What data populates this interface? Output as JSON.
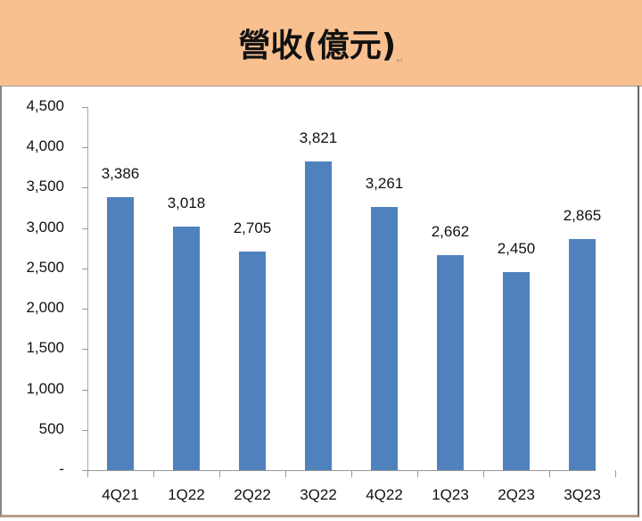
{
  "header": {
    "title": "營收(億元)",
    "return_mark": "↵"
  },
  "chart_data": {
    "type": "bar",
    "title": "營收(億元)",
    "xlabel": "",
    "ylabel": "",
    "categories": [
      "4Q21",
      "1Q22",
      "2Q22",
      "3Q22",
      "4Q22",
      "1Q23",
      "2Q23",
      "3Q23"
    ],
    "values": [
      3386,
      3018,
      2705,
      3821,
      3261,
      2662,
      2450,
      2865
    ],
    "value_labels": [
      "3,386",
      "3,018",
      "2,705",
      "3,821",
      "3,261",
      "2,662",
      "2,450",
      "2,865"
    ],
    "ylim": [
      0,
      4500
    ],
    "yticks": [
      "-",
      "500",
      "1,000",
      "1,500",
      "2,000",
      "2,500",
      "3,000",
      "3,500",
      "4,000",
      "4,500"
    ],
    "grid": false,
    "legend": "none",
    "bar_color": "#4f81bd"
  },
  "colors": {
    "header_bg": "#f9c08f",
    "bar": "#4f81bd"
  }
}
